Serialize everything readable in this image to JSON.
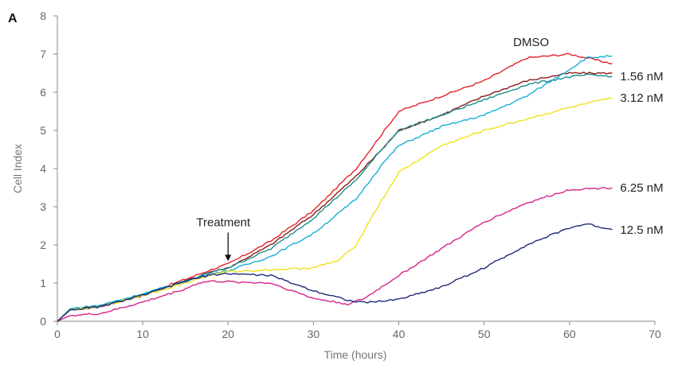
{
  "chart_data": {
    "type": "line",
    "panel_label": "A",
    "xlabel": "Time (hours)",
    "ylabel": "Cell Index",
    "xlim": [
      0,
      70
    ],
    "ylim": [
      0,
      8
    ],
    "xticks": [
      0,
      10,
      20,
      30,
      40,
      50,
      60,
      70
    ],
    "yticks": [
      0,
      1,
      2,
      3,
      4,
      5,
      6,
      7,
      8
    ],
    "grid": false,
    "annotation": {
      "text": "Treatment",
      "x": 20,
      "y": 1.45
    },
    "series": [
      {
        "name": "DMSO",
        "color": "#e3232c",
        "x": [
          0,
          1.5,
          5,
          10,
          15,
          18,
          20,
          25,
          30,
          35,
          38,
          40,
          45,
          50,
          55,
          60,
          62,
          65
        ],
        "y": [
          0,
          0.3,
          0.4,
          0.7,
          1.1,
          1.35,
          1.5,
          2.1,
          2.9,
          4.0,
          4.9,
          5.5,
          5.9,
          6.3,
          6.9,
          7.0,
          6.9,
          6.75
        ]
      },
      {
        "name": "",
        "color": "#8b1a1a",
        "x": [
          0,
          1.5,
          5,
          10,
          15,
          18,
          20,
          25,
          30,
          35,
          38,
          40,
          45,
          50,
          55,
          60,
          62,
          65
        ],
        "y": [
          0,
          0.3,
          0.38,
          0.68,
          1.05,
          1.3,
          1.4,
          2.0,
          2.8,
          3.8,
          4.5,
          5.0,
          5.4,
          5.9,
          6.3,
          6.5,
          6.5,
          6.5
        ]
      },
      {
        "name": "1.56 nM",
        "color": "#1a8f8f",
        "x": [
          0,
          1.5,
          5,
          10,
          15,
          18,
          20,
          25,
          30,
          35,
          38,
          40,
          45,
          50,
          55,
          60,
          62,
          65
        ],
        "y": [
          0,
          0.32,
          0.4,
          0.7,
          1.05,
          1.28,
          1.4,
          1.9,
          2.7,
          3.7,
          4.5,
          5.0,
          5.4,
          5.8,
          6.2,
          6.4,
          6.45,
          6.42
        ]
      },
      {
        "name": "",
        "color": "#1aaed6",
        "x": [
          0,
          1.5,
          5,
          10,
          15,
          18,
          20,
          25,
          30,
          35,
          38,
          40,
          45,
          50,
          55,
          60,
          62,
          65
        ],
        "y": [
          0,
          0.33,
          0.42,
          0.72,
          1.05,
          1.25,
          1.32,
          1.7,
          2.3,
          3.2,
          4.1,
          4.6,
          5.1,
          5.4,
          5.9,
          6.6,
          6.9,
          6.95
        ]
      },
      {
        "name": "3.12 nM",
        "color": "#f0e21a",
        "x": [
          0,
          1.5,
          5,
          10,
          15,
          18,
          20,
          25,
          30,
          33,
          35,
          37,
          40,
          45,
          50,
          55,
          60,
          65
        ],
        "y": [
          0,
          0.3,
          0.38,
          0.68,
          1.0,
          1.22,
          1.3,
          1.35,
          1.4,
          1.6,
          2.0,
          2.8,
          3.9,
          4.6,
          5.0,
          5.3,
          5.6,
          5.85
        ]
      },
      {
        "name": "6.25 nM",
        "color": "#d6248c",
        "x": [
          0,
          1.5,
          5,
          10,
          15,
          16.5,
          18,
          25,
          30,
          34,
          36,
          40,
          45,
          50,
          55,
          60,
          65
        ],
        "y": [
          0,
          0.15,
          0.2,
          0.5,
          0.85,
          1.0,
          1.05,
          1.0,
          0.6,
          0.45,
          0.6,
          1.2,
          1.9,
          2.6,
          3.1,
          3.45,
          3.5
        ]
      },
      {
        "name": "12.5 nM",
        "color": "#1f2a7a",
        "x": [
          0,
          1.5,
          5,
          10,
          15,
          18,
          20,
          25,
          30,
          35,
          37,
          40,
          45,
          50,
          55,
          60,
          62,
          65
        ],
        "y": [
          0,
          0.3,
          0.38,
          0.68,
          1.05,
          1.22,
          1.25,
          1.2,
          0.8,
          0.5,
          0.5,
          0.58,
          0.9,
          1.4,
          2.0,
          2.45,
          2.55,
          2.4
        ]
      }
    ]
  }
}
